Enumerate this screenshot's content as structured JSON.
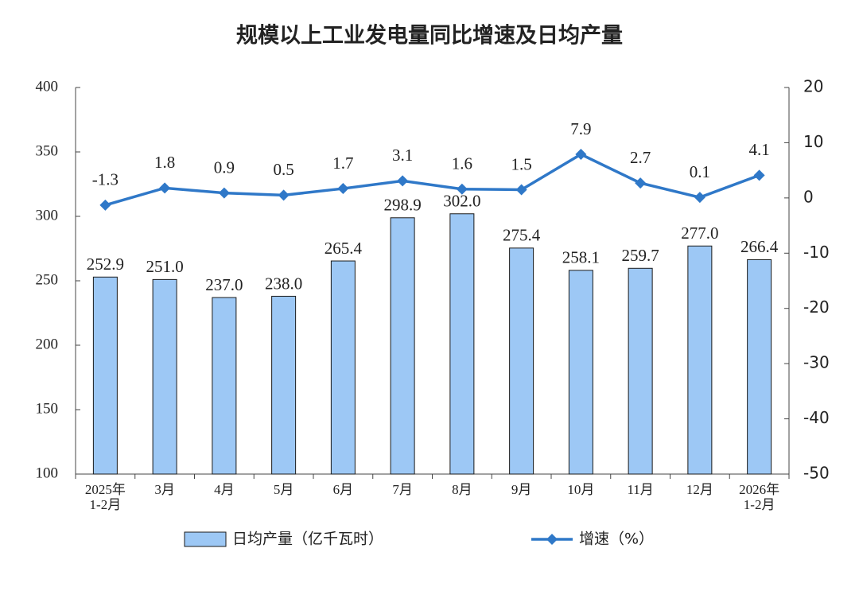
{
  "chart_data": {
    "type": "bar-line",
    "title": "规模以上工业发电量同比增速及日均产量",
    "categories": [
      "2025年\n1-2月",
      "3月",
      "4月",
      "5月",
      "6月",
      "7月",
      "8月",
      "9月",
      "10月",
      "11月",
      "12月",
      "2026年\n1-2月"
    ],
    "series": [
      {
        "name": "日均产量（亿千瓦时）",
        "type": "bar",
        "color": "#9dc8f5",
        "values": [
          252.9,
          251.0,
          237.0,
          238.0,
          265.4,
          298.9,
          302.0,
          275.4,
          258.1,
          259.7,
          277.0,
          266.4
        ],
        "value_labels": [
          "252.9",
          "251.0",
          "237.0",
          "238.0",
          "265.4",
          "298.9",
          "302.0",
          "275.4",
          "258.1",
          "259.7",
          "277.0",
          "266.4"
        ]
      },
      {
        "name": "增速（%）",
        "type": "line",
        "axis": "y2",
        "color": "#2f78c8",
        "values": [
          -1.3,
          1.8,
          0.9,
          0.5,
          1.7,
          3.1,
          1.6,
          1.5,
          7.9,
          2.7,
          0.1,
          4.1
        ]
      }
    ],
    "ylim": [
      100,
      400
    ],
    "yticks": [
      100,
      150,
      200,
      250,
      300,
      350,
      400
    ],
    "y2lim": [
      -50,
      20
    ],
    "y2ticks": [
      -50,
      -40,
      -30,
      -20,
      -10,
      0,
      10,
      20
    ]
  }
}
